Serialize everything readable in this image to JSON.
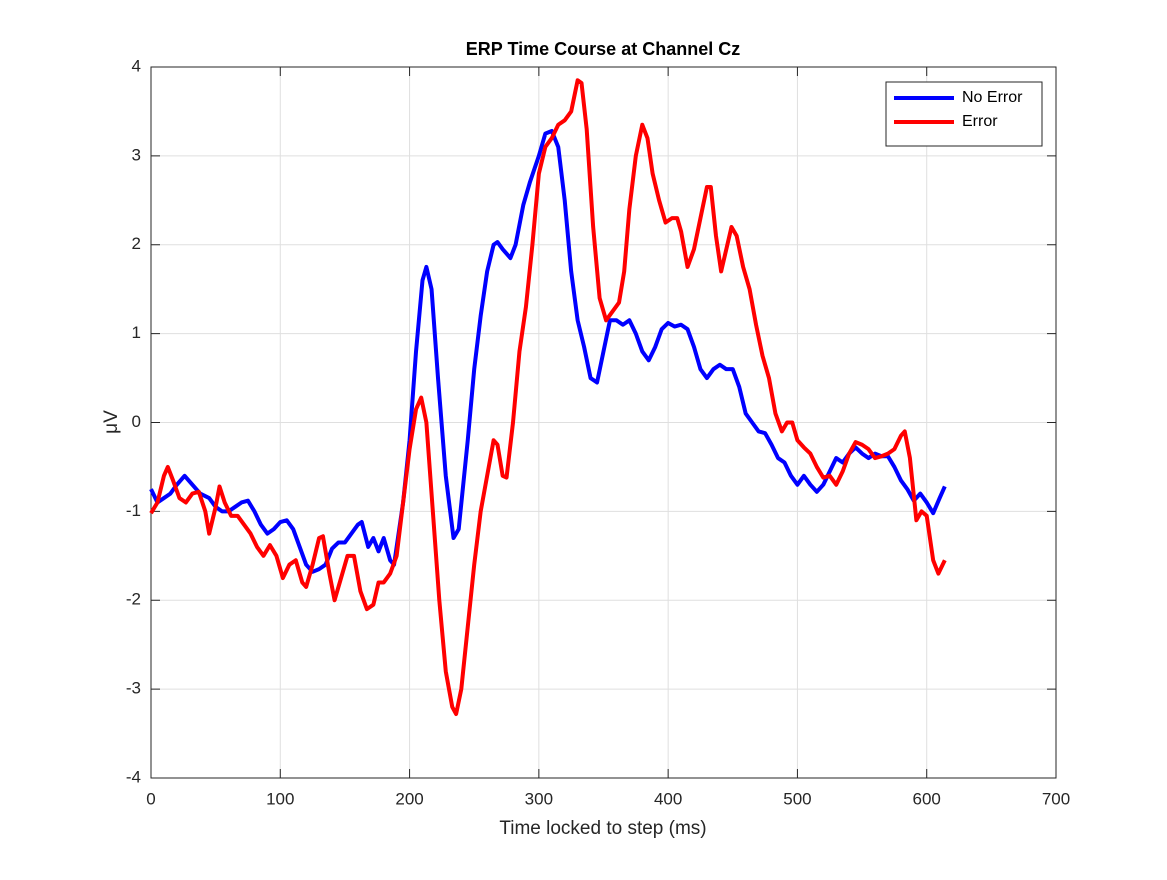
{
  "chart_data": {
    "type": "line",
    "title": "ERP Time Course at Channel Cz",
    "xlabel": "Time locked to step (ms)",
    "ylabel": "μV",
    "xlim": [
      0,
      700
    ],
    "xticks": [
      0,
      100,
      200,
      300,
      400,
      500,
      600,
      700
    ],
    "ylim": [
      -4,
      4
    ],
    "yticks": [
      -4,
      -3,
      -2,
      -1,
      0,
      1,
      2,
      3,
      4
    ],
    "grid": true,
    "legend": "upper-right",
    "series": [
      {
        "name": "No Error",
        "color": "#0000ff",
        "x": [
          0,
          5,
          10,
          15,
          20,
          26,
          32,
          38,
          45,
          50,
          55,
          60,
          65,
          70,
          75,
          80,
          85,
          90,
          95,
          100,
          105,
          110,
          115,
          120,
          125,
          130,
          135,
          140,
          145,
          150,
          155,
          160,
          163,
          168,
          172,
          176,
          180,
          185,
          188,
          195,
          200,
          205,
          210,
          213,
          217,
          222,
          228,
          234,
          238,
          245,
          250,
          255,
          260,
          265,
          268,
          272,
          278,
          282,
          288,
          293,
          300,
          305,
          310,
          315,
          320,
          325,
          330,
          335,
          340,
          345,
          350,
          355,
          360,
          365,
          370,
          375,
          380,
          385,
          390,
          395,
          400,
          405,
          410,
          415,
          420,
          425,
          430,
          435,
          440,
          445,
          450,
          455,
          460,
          465,
          470,
          475,
          480,
          485,
          490,
          495,
          500,
          505,
          510,
          515,
          520,
          525,
          530,
          535,
          540,
          545,
          550,
          555,
          560,
          565,
          570,
          575,
          580,
          585,
          590,
          595,
          600,
          605,
          610,
          614
        ],
        "values": [
          -0.75,
          -0.9,
          -0.85,
          -0.8,
          -0.7,
          -0.6,
          -0.7,
          -0.8,
          -0.85,
          -0.95,
          -1.0,
          -1.0,
          -0.95,
          -0.9,
          -0.88,
          -1.0,
          -1.15,
          -1.25,
          -1.2,
          -1.12,
          -1.1,
          -1.2,
          -1.4,
          -1.6,
          -1.68,
          -1.65,
          -1.6,
          -1.42,
          -1.35,
          -1.35,
          -1.25,
          -1.15,
          -1.12,
          -1.4,
          -1.3,
          -1.45,
          -1.3,
          -1.55,
          -1.6,
          -0.9,
          -0.2,
          0.8,
          1.6,
          1.75,
          1.5,
          0.5,
          -0.6,
          -1.3,
          -1.2,
          -0.2,
          0.6,
          1.2,
          1.7,
          2.0,
          2.03,
          1.95,
          1.85,
          2.0,
          2.45,
          2.7,
          3.0,
          3.25,
          3.28,
          3.1,
          2.5,
          1.7,
          1.15,
          0.85,
          0.5,
          0.45,
          0.8,
          1.15,
          1.15,
          1.1,
          1.15,
          1.0,
          0.8,
          0.7,
          0.85,
          1.05,
          1.12,
          1.08,
          1.1,
          1.05,
          0.85,
          0.6,
          0.5,
          0.6,
          0.65,
          0.6,
          0.6,
          0.4,
          0.1,
          0.0,
          -0.1,
          -0.12,
          -0.25,
          -0.4,
          -0.45,
          -0.6,
          -0.7,
          -0.6,
          -0.7,
          -0.78,
          -0.7,
          -0.55,
          -0.4,
          -0.45,
          -0.35,
          -0.28,
          -0.35,
          -0.4,
          -0.35,
          -0.38,
          -0.38,
          -0.5,
          -0.65,
          -0.75,
          -0.88,
          -0.8,
          -0.9,
          -1.02,
          -0.85,
          -0.72
        ]
      },
      {
        "name": "Error",
        "color": "#ff0000",
        "x": [
          0,
          5,
          10,
          13,
          17,
          22,
          27,
          32,
          37,
          42,
          45,
          50,
          53,
          57,
          62,
          67,
          72,
          77,
          82,
          87,
          92,
          97,
          102,
          107,
          112,
          117,
          120,
          125,
          130,
          133,
          138,
          142,
          147,
          152,
          157,
          162,
          167,
          172,
          176,
          180,
          185,
          190,
          195,
          200,
          205,
          209,
          213,
          218,
          223,
          228,
          233,
          236,
          240,
          245,
          250,
          255,
          260,
          265,
          268,
          272,
          275,
          280,
          285,
          290,
          295,
          300,
          305,
          310,
          315,
          320,
          325,
          330,
          333,
          337,
          342,
          347,
          352,
          357,
          362,
          366,
          370,
          375,
          380,
          384,
          388,
          393,
          398,
          403,
          407,
          410,
          415,
          420,
          425,
          430,
          433,
          437,
          441,
          445,
          449,
          453,
          458,
          463,
          468,
          473,
          478,
          483,
          488,
          492,
          496,
          500,
          505,
          510,
          515,
          520,
          525,
          530,
          535,
          540,
          545,
          550,
          555,
          560,
          565,
          570,
          575,
          580,
          583,
          587,
          592,
          596,
          600,
          605,
          609,
          614
        ],
        "values": [
          -1.02,
          -0.9,
          -0.6,
          -0.5,
          -0.65,
          -0.85,
          -0.9,
          -0.8,
          -0.78,
          -1.0,
          -1.25,
          -0.95,
          -0.72,
          -0.9,
          -1.05,
          -1.05,
          -1.15,
          -1.25,
          -1.4,
          -1.5,
          -1.38,
          -1.5,
          -1.75,
          -1.6,
          -1.55,
          -1.8,
          -1.85,
          -1.6,
          -1.3,
          -1.28,
          -1.7,
          -2.0,
          -1.75,
          -1.5,
          -1.5,
          -1.9,
          -2.1,
          -2.05,
          -1.8,
          -1.8,
          -1.7,
          -1.5,
          -0.9,
          -0.3,
          0.15,
          0.28,
          0.0,
          -1.0,
          -2.0,
          -2.8,
          -3.2,
          -3.28,
          -3.0,
          -2.3,
          -1.6,
          -1.0,
          -0.6,
          -0.2,
          -0.25,
          -0.6,
          -0.62,
          0.0,
          0.8,
          1.3,
          2.0,
          2.8,
          3.1,
          3.2,
          3.35,
          3.4,
          3.5,
          3.85,
          3.82,
          3.3,
          2.2,
          1.4,
          1.15,
          1.25,
          1.35,
          1.7,
          2.4,
          3.0,
          3.35,
          3.2,
          2.8,
          2.5,
          2.25,
          2.3,
          2.3,
          2.15,
          1.75,
          1.95,
          2.3,
          2.65,
          2.65,
          2.1,
          1.7,
          1.95,
          2.2,
          2.1,
          1.75,
          1.5,
          1.1,
          0.75,
          0.5,
          0.1,
          -0.1,
          0.0,
          0.0,
          -0.2,
          -0.28,
          -0.35,
          -0.5,
          -0.62,
          -0.6,
          -0.7,
          -0.55,
          -0.35,
          -0.22,
          -0.25,
          -0.3,
          -0.4,
          -0.38,
          -0.35,
          -0.3,
          -0.15,
          -0.1,
          -0.4,
          -1.1,
          -1.0,
          -1.05,
          -1.55,
          -1.7,
          -1.55
        ]
      }
    ]
  }
}
